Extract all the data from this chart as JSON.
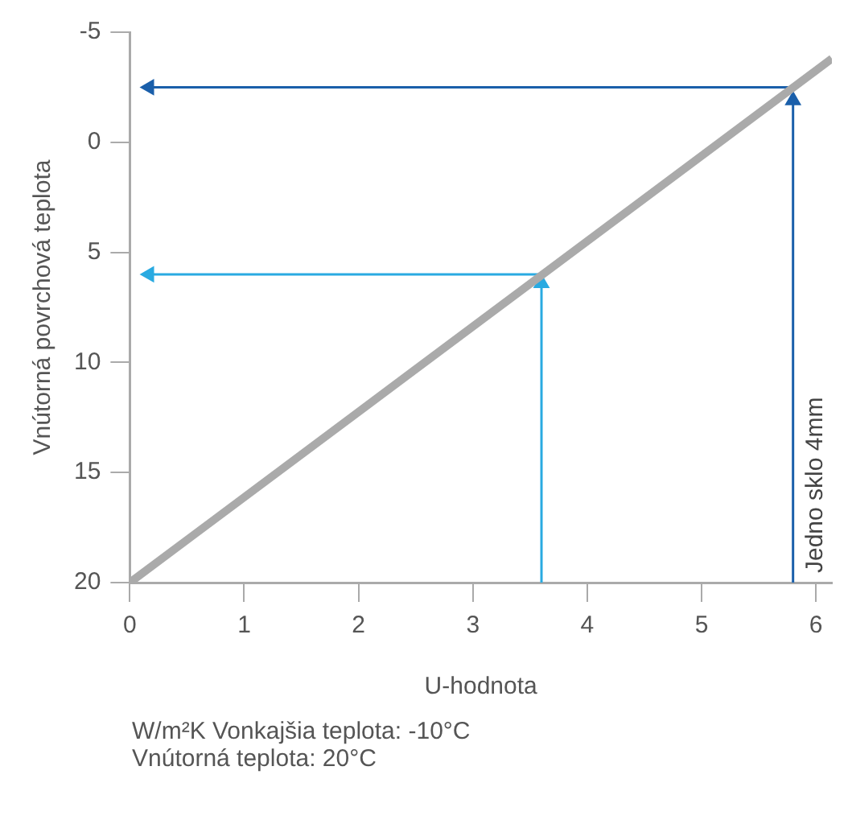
{
  "chart_data": {
    "type": "line",
    "xlabel": "U-hodnota",
    "ylabel": "Vnútorná povrchová teplota",
    "xlim": [
      0,
      6.14
    ],
    "xticks": [
      0,
      1,
      2,
      3,
      4,
      5,
      6
    ],
    "ylim": [
      20,
      -5
    ],
    "yticks": [
      -5,
      0,
      5,
      10,
      15,
      20
    ],
    "grid": false,
    "legend": false,
    "marker": "none",
    "line_style": "solid",
    "series": [
      {
        "color": "#aaaaaa",
        "x": [
          0,
          6.14
        ],
        "values": [
          20,
          -3.8
        ]
      },
      {
        "color": "#29aae1",
        "x": [
          3.6,
          3.6
        ],
        "values": [
          20,
          6.4
        ],
        "marker": "triangle"
      },
      {
        "color": "#29aae1",
        "x": [
          3.6,
          0.17
        ],
        "values": [
          6,
          6
        ],
        "marker": "triangle"
      },
      {
        "color": "#1a5faa",
        "x": [
          5.8,
          5.8
        ],
        "values": [
          20,
          -1.9
        ],
        "marker": "triangle"
      },
      {
        "color": "#1a5faa",
        "x": [
          5.8,
          0.17
        ],
        "values": [
          -2.5,
          -2.5
        ],
        "marker": "triangle"
      }
    ],
    "annotations": [
      {
        "text": "Jedno sklo 4mm",
        "x": 5.8
      },
      "W/m²K Vonkajšia teplota: -10°C",
      "Vnútorná teplota: 20°C"
    ]
  }
}
